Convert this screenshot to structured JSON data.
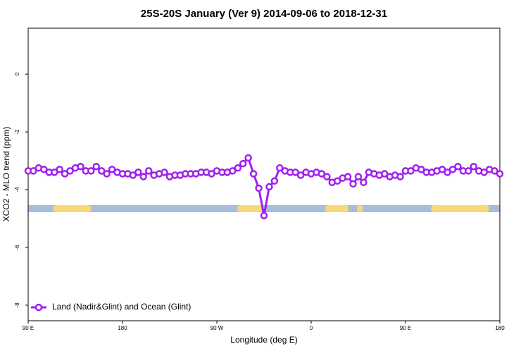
{
  "chart_data": {
    "type": "line",
    "title": "25S-20S January (Ver 9)   2014-09-06 to 2018-12-31",
    "x_label": "Longitude (deg E)",
    "y_label": "XCO2 - MLO trend (ppm)",
    "x": [
      90,
      95,
      100,
      105,
      110,
      115,
      120,
      125,
      130,
      135,
      140,
      145,
      150,
      155,
      160,
      165,
      170,
      175,
      180,
      185,
      190,
      195,
      200,
      205,
      210,
      215,
      220,
      225,
      230,
      235,
      240,
      245,
      250,
      255,
      260,
      265,
      270,
      275,
      280,
      285,
      290,
      295,
      300,
      305,
      310,
      315,
      320,
      325,
      330,
      335,
      340,
      345,
      350,
      355,
      360,
      365,
      370,
      375,
      380,
      385,
      390,
      395,
      400,
      405,
      410,
      415,
      420,
      425,
      430,
      435,
      440,
      445,
      450,
      455,
      460,
      465,
      470,
      475,
      480,
      485,
      490,
      495,
      500,
      505,
      510,
      515,
      520,
      525,
      530,
      535,
      540
    ],
    "series": [
      {
        "name": "Land (Nadir&Glint) and Ocean (Glint)",
        "color": "#a020f0",
        "values": [
          -3.35,
          -3.35,
          -3.25,
          -3.3,
          -3.4,
          -3.4,
          -3.3,
          -3.45,
          -3.35,
          -3.25,
          -3.2,
          -3.35,
          -3.35,
          -3.2,
          -3.35,
          -3.45,
          -3.3,
          -3.4,
          -3.45,
          -3.45,
          -3.5,
          -3.4,
          -3.55,
          -3.35,
          -3.5,
          -3.45,
          -3.4,
          -3.55,
          -3.5,
          -3.5,
          -3.45,
          -3.45,
          -3.45,
          -3.4,
          -3.4,
          -3.45,
          -3.35,
          -3.4,
          -3.4,
          -3.35,
          -3.25,
          -3.1,
          -2.9,
          -3.45,
          -3.95,
          -4.9,
          -3.9,
          -3.7,
          -3.25,
          -3.35,
          -3.4,
          -3.4,
          -3.5,
          -3.4,
          -3.45,
          -3.4,
          -3.45,
          -3.55,
          -3.75,
          -3.7,
          -3.6,
          -3.55,
          -3.8,
          -3.55,
          -3.75,
          -3.4,
          -3.45,
          -3.5,
          -3.45,
          -3.55,
          -3.5,
          -3.55,
          -3.35,
          -3.35,
          -3.25,
          -3.3,
          -3.4,
          -3.4,
          -3.35,
          -3.3,
          -3.4,
          -3.3,
          -3.2,
          -3.35,
          -3.35,
          -3.2,
          -3.35,
          -3.4,
          -3.3,
          -3.35,
          -3.45
        ]
      }
    ],
    "xlim": [
      90,
      540
    ],
    "xticks": [
      {
        "value": 90,
        "label": "90 E"
      },
      180,
      {
        "value": 270,
        "label": "90 W"
      },
      {
        "value": 360,
        "label": "0"
      },
      {
        "value": 450,
        "label": "90 E"
      },
      {
        "value": 540,
        "label": "180"
      }
    ],
    "ylim": [
      -8.54,
      1.59
    ],
    "yticks": [
      0,
      -2,
      -4,
      -6,
      -8
    ],
    "legend": "bottom-left"
  }
}
